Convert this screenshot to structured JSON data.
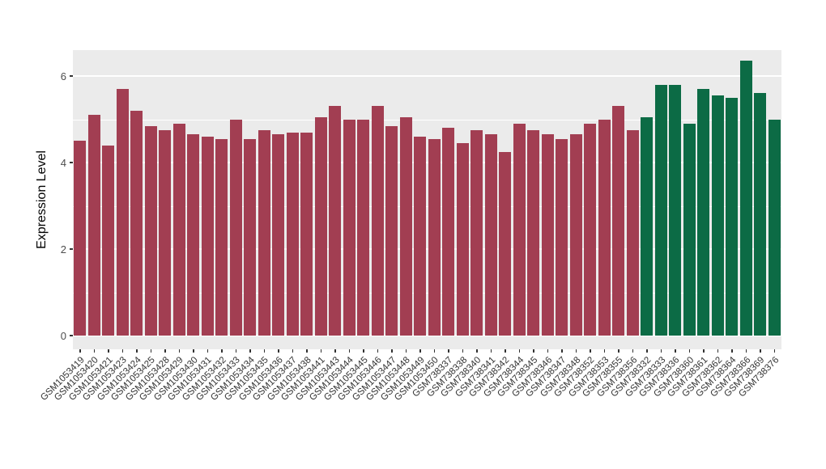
{
  "chart_data": {
    "type": "bar",
    "title": "",
    "xlabel": "",
    "ylabel": "Expression Level",
    "ylim": [
      0,
      6.6
    ],
    "yticks": [
      0,
      2,
      4,
      6
    ],
    "ytick_labels": [
      "0",
      "2",
      "4",
      "6"
    ],
    "yticks_minor": [
      1,
      3,
      5
    ],
    "grid": true,
    "legend": "none",
    "categories": [
      "GSM1053419",
      "GSM1053420",
      "GSM1053421",
      "GSM1053423",
      "GSM1053424",
      "GSM1053425",
      "GSM1053428",
      "GSM1053429",
      "GSM1053430",
      "GSM1053431",
      "GSM1053432",
      "GSM1053433",
      "GSM1053434",
      "GSM1053435",
      "GSM1053436",
      "GSM1053437",
      "GSM1053438",
      "GSM1053441",
      "GSM1053443",
      "GSM1053444",
      "GSM1053445",
      "GSM1053446",
      "GSM1053447",
      "GSM1053448",
      "GSM1053449",
      "GSM1053450",
      "GSM738337",
      "GSM738338",
      "GSM738340",
      "GSM738341",
      "GSM738342",
      "GSM738344",
      "GSM738345",
      "GSM738346",
      "GSM738347",
      "GSM738348",
      "GSM738352",
      "GSM738353",
      "GSM738355",
      "GSM738356",
      "GSM738332",
      "GSM738333",
      "GSM738336",
      "GSM738360",
      "GSM738361",
      "GSM738362",
      "GSM738364",
      "GSM738366",
      "GSM738369",
      "GSM738376"
    ],
    "values": [
      4.5,
      5.1,
      4.4,
      5.7,
      5.2,
      4.85,
      4.75,
      4.9,
      4.65,
      4.6,
      4.55,
      5.0,
      4.55,
      4.75,
      4.65,
      4.7,
      4.7,
      5.05,
      5.3,
      5.0,
      5.0,
      5.3,
      4.85,
      5.05,
      4.6,
      4.55,
      4.8,
      4.45,
      4.75,
      4.65,
      4.25,
      4.9,
      4.75,
      4.65,
      4.55,
      4.65,
      4.9,
      5.0,
      5.3,
      4.75,
      5.05,
      5.8,
      5.8,
      4.9,
      5.7,
      5.55,
      5.5,
      6.35,
      5.6,
      5.0
    ],
    "color_groups": [
      {
        "color": "#A23E52",
        "count": 40
      },
      {
        "color": "#0C6B45",
        "count": 10
      }
    ],
    "style": {
      "panel_background": "#EBEBEB",
      "grid_color": "#FFFFFF",
      "tick_color": "#333333",
      "tick_label_color": "#4D4D4D",
      "x_label_color": "#333333",
      "axis_title_color": "#000000"
    }
  }
}
